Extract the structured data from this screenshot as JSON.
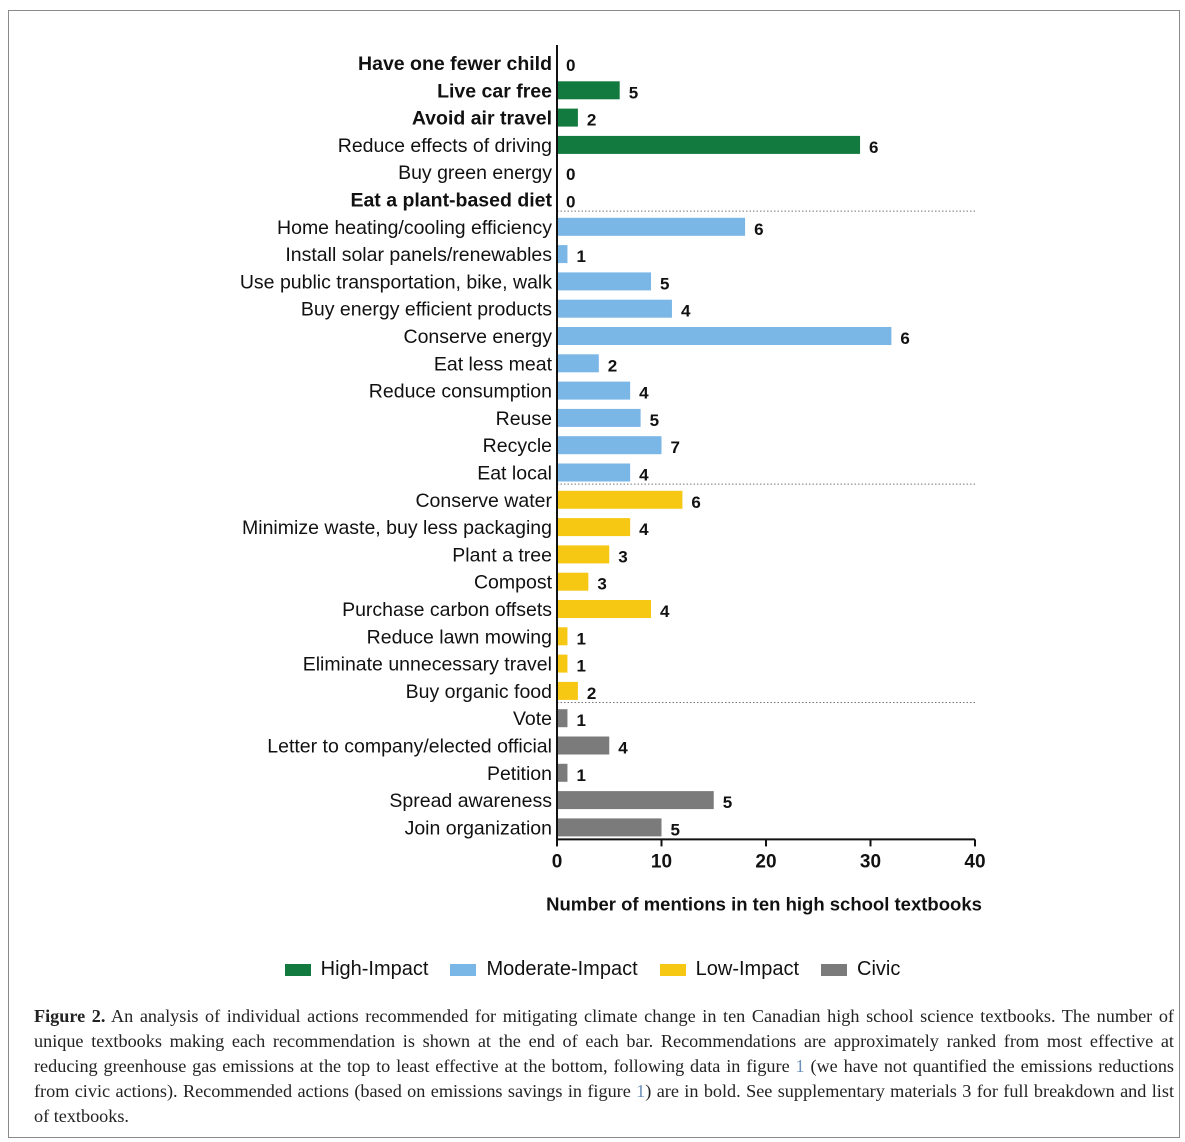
{
  "chart_data": {
    "type": "bar",
    "orientation": "horizontal",
    "xlabel": "Number of mentions in ten high school textbooks",
    "xlim": [
      0,
      40
    ],
    "xticks": [
      0,
      10,
      20,
      30,
      40
    ],
    "groups": [
      {
        "name": "High-Impact",
        "color": "#137a3f"
      },
      {
        "name": "Moderate-Impact",
        "color": "#7ab6e6"
      },
      {
        "name": "Low-Impact",
        "color": "#f6c814"
      },
      {
        "name": "Civic",
        "color": "#7b7b7b"
      }
    ],
    "items": [
      {
        "label": "Have one fewer child",
        "value": 0,
        "count": "0",
        "group": 0,
        "bold": true
      },
      {
        "label": "Live car free",
        "value": 6,
        "count": "5",
        "group": 0,
        "bold": true
      },
      {
        "label": "Avoid air travel",
        "value": 2,
        "count": "2",
        "group": 0,
        "bold": true
      },
      {
        "label": "Reduce effects of driving",
        "value": 29,
        "count": "6",
        "group": 0,
        "bold": false
      },
      {
        "label": "Buy green energy",
        "value": 0,
        "count": "0",
        "group": 0,
        "bold": false
      },
      {
        "label": "Eat a plant-based diet",
        "value": 0,
        "count": "0",
        "group": 0,
        "bold": true
      },
      {
        "label": "Home heating/cooling efficiency",
        "value": 18,
        "count": "6",
        "group": 1,
        "bold": false
      },
      {
        "label": "Install solar panels/renewables",
        "value": 1,
        "count": "1",
        "group": 1,
        "bold": false
      },
      {
        "label": "Use public transportation, bike, walk",
        "value": 9,
        "count": "5",
        "group": 1,
        "bold": false
      },
      {
        "label": "Buy energy efficient products",
        "value": 11,
        "count": "4",
        "group": 1,
        "bold": false
      },
      {
        "label": "Conserve energy",
        "value": 32,
        "count": "6",
        "group": 1,
        "bold": false
      },
      {
        "label": "Eat less meat",
        "value": 4,
        "count": "2",
        "group": 1,
        "bold": false
      },
      {
        "label": "Reduce consumption",
        "value": 7,
        "count": "4",
        "group": 1,
        "bold": false
      },
      {
        "label": "Reuse",
        "value": 8,
        "count": "5",
        "group": 1,
        "bold": false
      },
      {
        "label": "Recycle",
        "value": 10,
        "count": "7",
        "group": 1,
        "bold": false
      },
      {
        "label": "Eat local",
        "value": 7,
        "count": "4",
        "group": 1,
        "bold": false
      },
      {
        "label": "Conserve water",
        "value": 12,
        "count": "6",
        "group": 2,
        "bold": false
      },
      {
        "label": "Minimize waste, buy less packaging",
        "value": 7,
        "count": "4",
        "group": 2,
        "bold": false
      },
      {
        "label": "Plant a tree",
        "value": 5,
        "count": "3",
        "group": 2,
        "bold": false
      },
      {
        "label": "Compost",
        "value": 3,
        "count": "3",
        "group": 2,
        "bold": false
      },
      {
        "label": "Purchase carbon offsets",
        "value": 9,
        "count": "4",
        "group": 2,
        "bold": false
      },
      {
        "label": "Reduce lawn mowing",
        "value": 1,
        "count": "1",
        "group": 2,
        "bold": false
      },
      {
        "label": "Eliminate unnecessary travel",
        "value": 1,
        "count": "1",
        "group": 2,
        "bold": false
      },
      {
        "label": "Buy organic food",
        "value": 2,
        "count": "2",
        "group": 2,
        "bold": false
      },
      {
        "label": "Vote",
        "value": 1,
        "count": "1",
        "group": 3,
        "bold": false
      },
      {
        "label": "Letter to company/elected official",
        "value": 5,
        "count": "4",
        "group": 3,
        "bold": false
      },
      {
        "label": "Petition",
        "value": 1,
        "count": "1",
        "group": 3,
        "bold": false
      },
      {
        "label": "Spread awareness",
        "value": 15,
        "count": "5",
        "group": 3,
        "bold": false
      },
      {
        "label": "Join organization",
        "value": 10,
        "count": "5",
        "group": 3,
        "bold": false
      }
    ],
    "grid": false,
    "legend_placement": "bottom"
  },
  "legend": [
    {
      "label": "High-Impact",
      "color": "#137a3f"
    },
    {
      "label": "Moderate-Impact",
      "color": "#7ab6e6"
    },
    {
      "label": "Low-Impact",
      "color": "#f6c814"
    },
    {
      "label": "Civic",
      "color": "#7b7b7b"
    }
  ],
  "caption": {
    "label": "Figure 2.",
    "text_1": " An analysis of individual actions recommended for mitigating climate change in ten Canadian high school science textbooks. The number of unique textbooks making each recommendation is shown at the end of each bar. Recommendations are approximately ranked from most effective at reducing greenhouse gas emissions at the top to least effective at the bottom, following data in figure ",
    "ref_1": "1",
    "text_2": " (we have not quantified the emissions reductions from civic actions). Recommended actions (based on emissions savings in figure ",
    "ref_2": "1",
    "text_3": ") are in bold. See supplementary materials 3 for full breakdown and list of textbooks."
  }
}
